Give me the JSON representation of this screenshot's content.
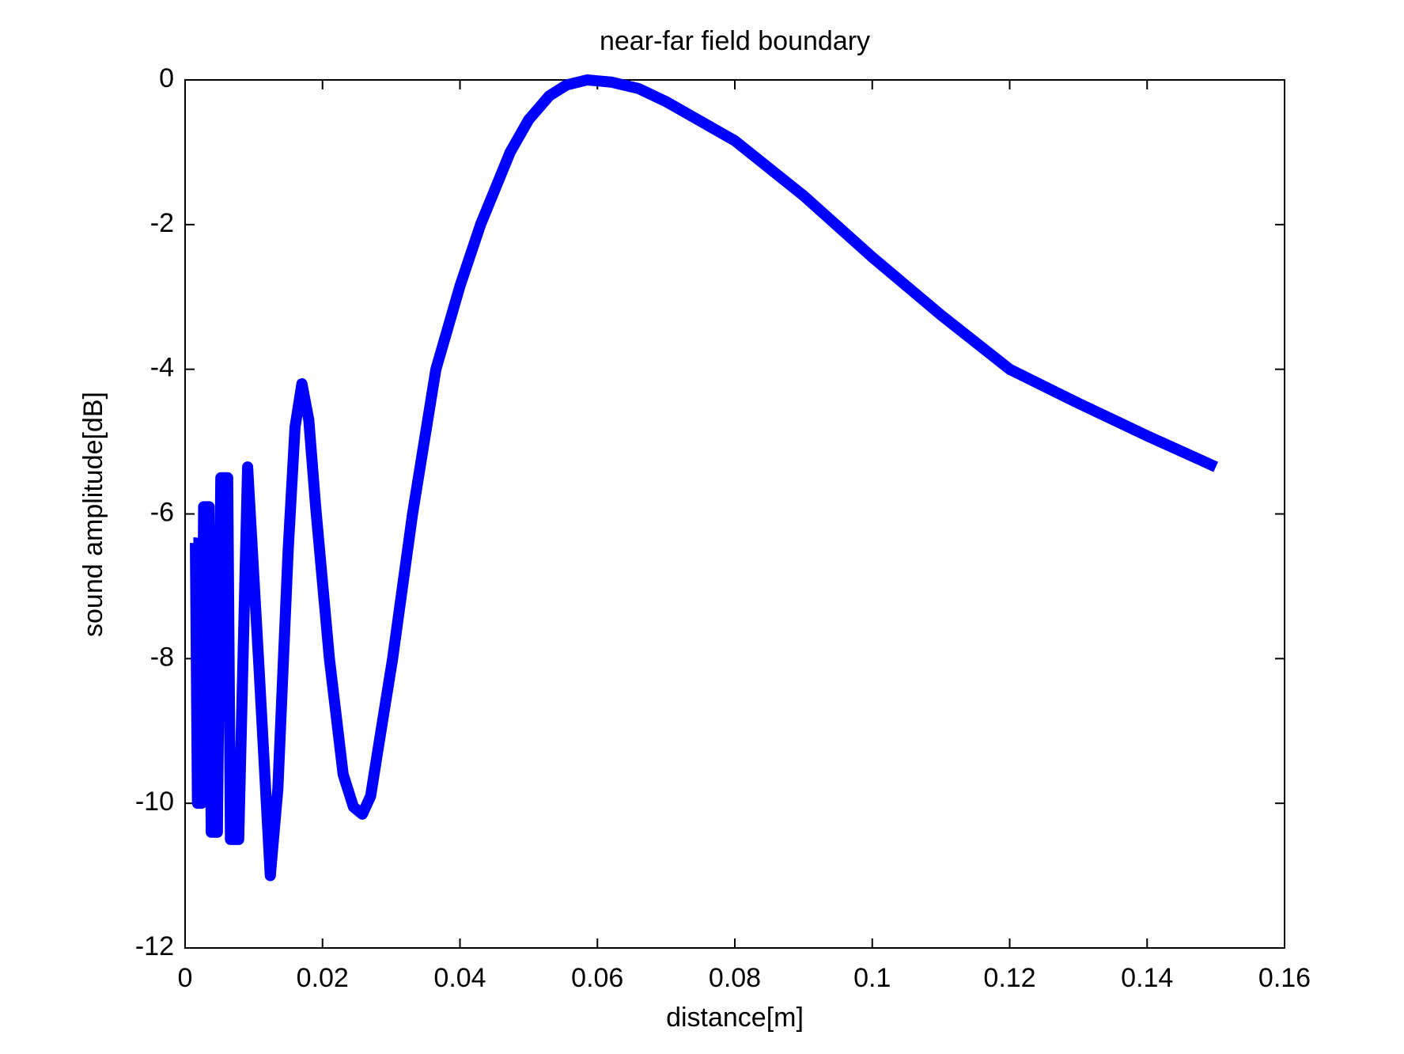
{
  "chart_data": {
    "type": "line",
    "title": "near-far field boundary",
    "x_label": "distance[m]",
    "y_label": "sound amplitude[dB]",
    "x": [
      0.0012,
      0.0015,
      0.0018,
      0.0024,
      0.0027,
      0.0035,
      0.0038,
      0.0047,
      0.0052,
      0.0062,
      0.0066,
      0.0078,
      0.0091,
      0.0108,
      0.0124,
      0.0135,
      0.015,
      0.016,
      0.017,
      0.018,
      0.019,
      0.021,
      0.023,
      0.0245,
      0.0258,
      0.027,
      0.028,
      0.0302,
      0.0331,
      0.0365,
      0.04,
      0.043,
      0.0473,
      0.05,
      0.053,
      0.0555,
      0.0585,
      0.062,
      0.066,
      0.07,
      0.08,
      0.09,
      0.1,
      0.11,
      0.12,
      0.13,
      0.14,
      0.15
    ],
    "series": [
      {
        "name": "sound amplitude",
        "color": "#0000ff",
        "values": [
          -6.4,
          -6.4,
          -10,
          -10,
          -5.9,
          -5.9,
          -10.4,
          -10.4,
          -5.5,
          -5.5,
          -10.5,
          -10.5,
          -5.35,
          -8.2,
          -11,
          -9.8,
          -6.5,
          -4.8,
          -4.2,
          -4.7,
          -5.9,
          -8.0,
          -9.6,
          -10.05,
          -10.15,
          -9.9,
          -9.3,
          -8,
          -6,
          -4,
          -2.85,
          -2,
          -1,
          -0.55,
          -0.22,
          -0.07,
          0,
          -0.03,
          -0.12,
          -0.3,
          -0.84,
          -1.6,
          -2.45,
          -3.25,
          -4.0,
          -4.47,
          -4.92,
          -5.35
        ]
      }
    ],
    "xlim": [
      0,
      0.16
    ],
    "xticks": [
      0,
      0.02,
      0.04,
      0.06,
      0.08,
      0.1,
      0.12,
      0.14,
      0.16
    ],
    "ylim": [
      -12,
      0
    ],
    "yticks": [
      -12,
      -10,
      -8,
      -6,
      -4,
      -2,
      0
    ],
    "grid": false
  }
}
